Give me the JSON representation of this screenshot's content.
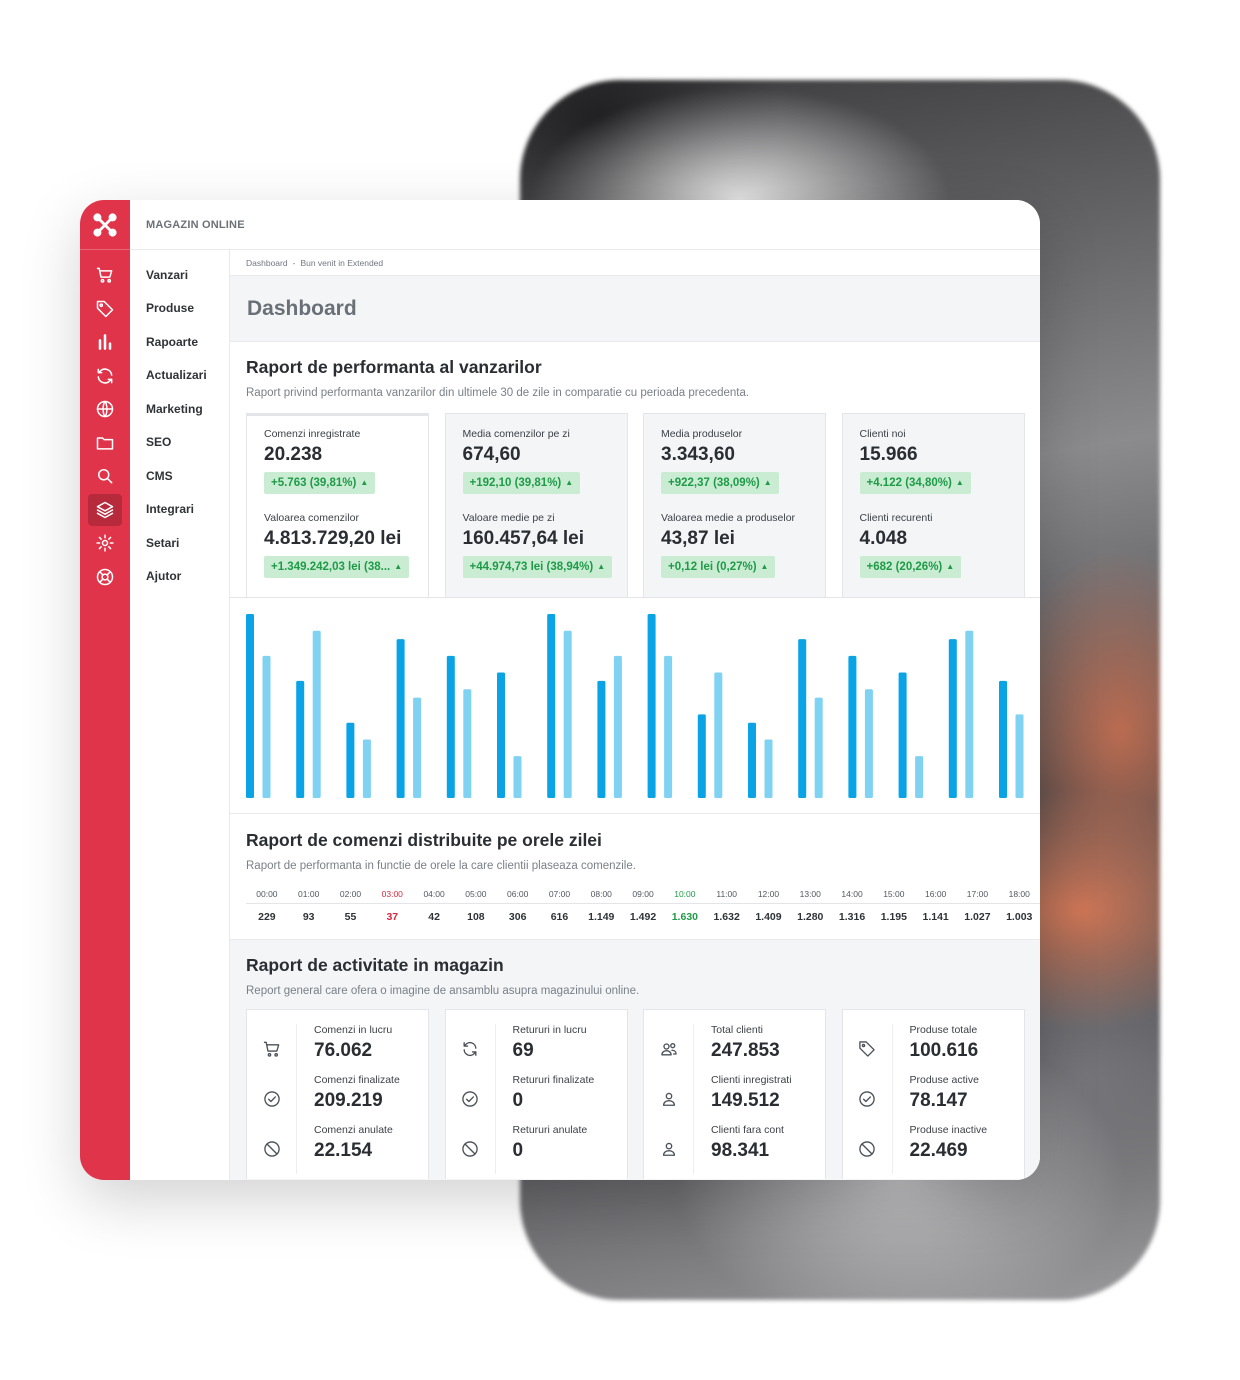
{
  "app": {
    "store_name": "MAGAZIN ONLINE",
    "menu": [
      "Vanzari",
      "Produse",
      "Rapoarte",
      "Actualizari",
      "Marketing",
      "SEO",
      "CMS",
      "Integrari",
      "Setari",
      "Ajutor"
    ],
    "rail_icons": [
      "cart-icon",
      "tag-icon",
      "bar-chart-icon",
      "refresh-icon",
      "globe-icon",
      "folder-icon",
      "search-icon",
      "layers-icon",
      "gear-icon",
      "lifebuoy-icon"
    ],
    "active_rail_icon": "layers-icon"
  },
  "breadcrumb": [
    "Dashboard",
    "Bun venit in Extended"
  ],
  "page_title": "Dashboard",
  "sales": {
    "title": "Raport de performanta al vanzarilor",
    "subtitle": "Raport privind performanta vanzarilor din ultimele 30 de zile in comparatie cu perioada precedenta.",
    "cards": [
      {
        "label1": "Comenzi inregistrate",
        "value1": "20.238",
        "change1": "+5.763 (39,81%)",
        "label2": "Valoarea comenzilor",
        "value2": "4.813.729,20 lei",
        "change2": "+1.349.242,03 lei (38..."
      },
      {
        "label1": "Media comenzilor pe zi",
        "value1": "674,60",
        "change1": "+192,10 (39,81%)",
        "label2": "Valoare medie pe zi",
        "value2": "160.457,64 lei",
        "change2": "+44.974,73 lei (38,94%)"
      },
      {
        "label1": "Media produselor",
        "value1": "3.343,60",
        "change1": "+922,37 (38,09%)",
        "label2": "Valoarea medie a produselor",
        "value2": "43,87 lei",
        "change2": "+0,12 lei (0,27%)"
      },
      {
        "label1": "Clienti noi",
        "value1": "15.966",
        "change1": "+4.122 (34,80%)",
        "label2": "Clienti recurenti",
        "value2": "4.048",
        "change2": "+682 (20,26%)"
      }
    ],
    "up_arrow": "▲"
  },
  "chart_data": {
    "type": "bar",
    "colors": {
      "current": "#0aa3e6",
      "previous": "#7fd2f2"
    },
    "series": [
      {
        "values": [
          22,
          14,
          9,
          19,
          17,
          15,
          22,
          14,
          22,
          10,
          9,
          19,
          17,
          15,
          19,
          14
        ]
      },
      {
        "values": [
          17,
          20,
          7,
          12,
          13,
          5,
          20,
          17,
          17,
          15,
          7,
          12,
          13,
          5,
          20,
          10
        ]
      }
    ],
    "ylim": [
      0,
      22
    ]
  },
  "hours": {
    "title": "Raport de comenzi distribuite pe orele zilei",
    "subtitle": "Raport de performanta in functie de orele la care clientii plaseaza comenzile.",
    "times": [
      "00:00",
      "01:00",
      "02:00",
      "03:00",
      "04:00",
      "05:00",
      "06:00",
      "07:00",
      "08:00",
      "09:00",
      "10:00",
      "11:00",
      "12:00",
      "13:00",
      "14:00",
      "15:00",
      "16:00",
      "17:00",
      "18:00"
    ],
    "values": [
      "229",
      "93",
      "55",
      "37",
      "42",
      "108",
      "306",
      "616",
      "1.149",
      "1.492",
      "1.630",
      "1.632",
      "1.409",
      "1.280",
      "1.316",
      "1.195",
      "1.141",
      "1.027",
      "1.003"
    ],
    "low_color": "#d9283f",
    "high_color": "#1f9a47"
  },
  "activity": {
    "title": "Raport de activitate in magazin",
    "subtitle": "Report general care ofera o imagine de ansamblu asupra magazinului online.",
    "cards": [
      [
        {
          "icon": "cart-icon",
          "label": "Comenzi in lucru",
          "value": "76.062"
        },
        {
          "icon": "check-circle-icon",
          "label": "Comenzi finalizate",
          "value": "209.219"
        },
        {
          "icon": "ban-icon",
          "label": "Comenzi anulate",
          "value": "22.154"
        }
      ],
      [
        {
          "icon": "refresh-icon",
          "label": "Retururi in lucru",
          "value": "69"
        },
        {
          "icon": "check-circle-icon",
          "label": "Retururi finalizate",
          "value": "0"
        },
        {
          "icon": "ban-icon",
          "label": "Retururi anulate",
          "value": "0"
        }
      ],
      [
        {
          "icon": "users-icon",
          "label": "Total clienti",
          "value": "247.853"
        },
        {
          "icon": "user-icon",
          "label": "Clienti inregistrati",
          "value": "149.512"
        },
        {
          "icon": "user-icon",
          "label": "Clienti fara cont",
          "value": "98.341"
        }
      ],
      [
        {
          "icon": "tag-icon",
          "label": "Produse totale",
          "value": "100.616"
        },
        {
          "icon": "check-circle-icon",
          "label": "Produse active",
          "value": "78.147"
        },
        {
          "icon": "ban-icon",
          "label": "Produse inactive",
          "value": "22.469"
        }
      ]
    ]
  }
}
